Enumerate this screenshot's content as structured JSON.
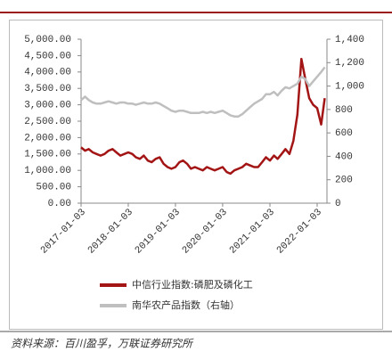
{
  "chart_data": {
    "type": "line",
    "x": [
      "2017-01-03",
      "2017-02-03",
      "2017-03-03",
      "2017-04-03",
      "2017-05-03",
      "2017-06-03",
      "2017-07-03",
      "2017-08-03",
      "2017-09-03",
      "2017-10-03",
      "2017-11-03",
      "2017-12-03",
      "2018-01-03",
      "2018-02-03",
      "2018-03-03",
      "2018-04-03",
      "2018-05-03",
      "2018-06-03",
      "2018-07-03",
      "2018-08-03",
      "2018-09-03",
      "2018-10-03",
      "2018-11-03",
      "2018-12-03",
      "2019-01-03",
      "2019-02-03",
      "2019-03-03",
      "2019-04-03",
      "2019-05-03",
      "2019-06-03",
      "2019-07-03",
      "2019-08-03",
      "2019-09-03",
      "2019-10-03",
      "2019-11-03",
      "2019-12-03",
      "2020-01-03",
      "2020-02-03",
      "2020-03-03",
      "2020-04-03",
      "2020-05-03",
      "2020-06-03",
      "2020-07-03",
      "2020-08-03",
      "2020-09-03",
      "2020-10-03",
      "2020-11-03",
      "2020-12-03",
      "2021-01-03",
      "2021-02-03",
      "2021-03-03",
      "2021-04-03",
      "2021-05-03",
      "2021-06-03",
      "2021-07-03",
      "2021-08-03",
      "2021-09-03",
      "2021-10-03",
      "2021-11-03",
      "2021-12-03",
      "2022-01-03",
      "2022-02-03",
      "2022-03-03"
    ],
    "series": [
      {
        "name": "中信行业指数:磷肥及磷化工",
        "color": "#a31515",
        "axis": "y",
        "values": [
          1700,
          1600,
          1650,
          1550,
          1500,
          1450,
          1500,
          1600,
          1650,
          1550,
          1450,
          1500,
          1550,
          1500,
          1400,
          1350,
          1450,
          1300,
          1250,
          1350,
          1400,
          1200,
          1100,
          1050,
          1100,
          1250,
          1300,
          1200,
          1050,
          1100,
          1050,
          1000,
          1100,
          1050,
          1000,
          1050,
          1100,
          950,
          900,
          1000,
          1050,
          1100,
          1200,
          1150,
          1100,
          1100,
          1250,
          1400,
          1300,
          1450,
          1350,
          1500,
          1650,
          1500,
          1900,
          2700,
          4400,
          3800,
          3200,
          3000,
          2900,
          2400,
          3200
        ]
      },
      {
        "name": "南华农产品指数（右轴）",
        "color": "#bfbfbf",
        "axis": "y2",
        "values": [
          880,
          910,
          880,
          860,
          850,
          850,
          860,
          870,
          860,
          850,
          860,
          860,
          850,
          850,
          840,
          850,
          860,
          850,
          850,
          860,
          850,
          830,
          810,
          790,
          780,
          790,
          790,
          780,
          770,
          770,
          770,
          780,
          770,
          780,
          770,
          780,
          790,
          770,
          750,
          740,
          740,
          760,
          790,
          820,
          850,
          870,
          890,
          930,
          930,
          950,
          920,
          960,
          990,
          980,
          1000,
          1020,
          1080,
          1060,
          1000,
          1040,
          1080,
          1120,
          1160
        ]
      }
    ],
    "xlim": [
      "2017-01-03",
      "2022-03-20"
    ],
    "xticks": [
      "2017-01-03",
      "2018-01-03",
      "2019-01-03",
      "2020-01-03",
      "2021-01-03",
      "2022-01-03"
    ],
    "ylim": [
      0,
      5000
    ],
    "yticks": [
      {
        "value": 0,
        "label": "0.00"
      },
      {
        "value": 500,
        "label": "500.00"
      },
      {
        "value": 1000,
        "label": "1,000.00"
      },
      {
        "value": 1500,
        "label": "1,500.00"
      },
      {
        "value": 2000,
        "label": "2,000.00"
      },
      {
        "value": 2500,
        "label": "2,500.00"
      },
      {
        "value": 3000,
        "label": "3,000.00"
      },
      {
        "value": 3500,
        "label": "3,500.00"
      },
      {
        "value": 4000,
        "label": "4,000.00"
      },
      {
        "value": 4500,
        "label": "4,500.00"
      },
      {
        "value": 5000,
        "label": "5,000.00"
      }
    ],
    "y2lim": [
      0,
      1400
    ],
    "y2ticks": [
      0,
      200,
      400,
      600,
      800,
      {
        "value": 1000,
        "label": "1,000"
      },
      {
        "value": 1200,
        "label": "1,200"
      },
      {
        "value": 1400,
        "label": "1,400"
      }
    ],
    "source": "资料来源：百川盈孚，万联证券研究所"
  }
}
